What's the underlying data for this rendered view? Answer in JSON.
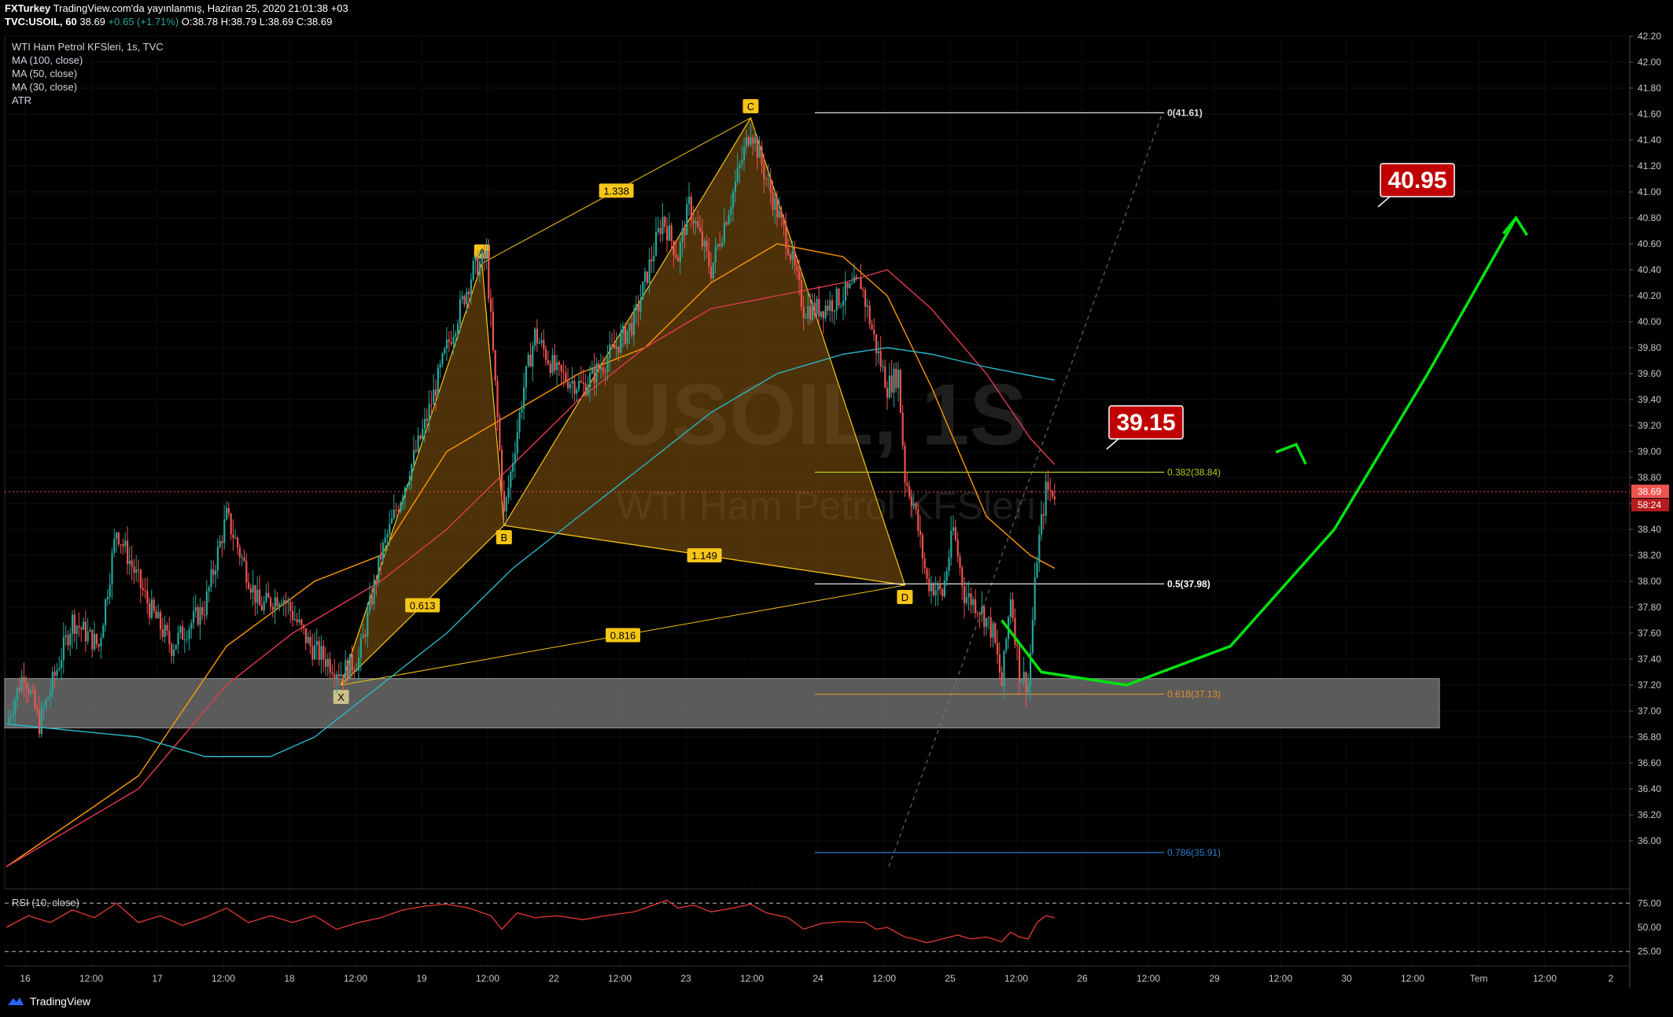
{
  "header": {
    "line1_user": "FXTurkey",
    "line1_rest": "TradingView.com'da yayınlanmış, Haziran 25, 2020 21:01:38 +03",
    "line2_symbol": "TVC:USOIL, 60",
    "line2_price": "38.69",
    "line2_change": "+0.65 (+1.71%)",
    "line2_ohlc": "O:38.78 H:38.79 L:38.69 C:38.69"
  },
  "legend": {
    "title": "WTI Ham Petrol KFSleri, 1s, TVC",
    "items": [
      "MA (100, close)",
      "MA (50, close)",
      "MA (30, close)",
      "ATR"
    ],
    "rsi": "RSI (10, close)"
  },
  "watermark": {
    "symbol": "USOIL, 1S",
    "name": "WTI Ham Petrol KFSleri"
  },
  "footer": {
    "brand": "TradingView"
  },
  "colors": {
    "up": "#26a69a",
    "down": "#ef5350",
    "pattern": "#f5c518",
    "ma30": "#ff9800",
    "ma50": "#e53950",
    "ma100": "#2bb8c8",
    "arrow": "#00e30f",
    "label_bg": "#c00000",
    "zone": "#7a7a7a"
  },
  "chart_data": {
    "type": "candlestick",
    "symbol": "TVC:USOIL",
    "interval": "60",
    "last_price": 38.69,
    "countdown": "58:24",
    "ylim": [
      35.8,
      42.2
    ],
    "y_ticks": [
      "42.20",
      "42.00",
      "41.80",
      "41.60",
      "41.40",
      "41.20",
      "41.00",
      "40.80",
      "40.60",
      "40.40",
      "40.20",
      "40.00",
      "39.80",
      "39.60",
      "39.40",
      "39.20",
      "39.00",
      "38.80",
      "38.60",
      "38.40",
      "38.20",
      "38.00",
      "37.80",
      "37.60",
      "37.40",
      "37.20",
      "37.00",
      "36.80",
      "36.60",
      "36.40",
      "36.20",
      "36.00"
    ],
    "x_ticks": [
      "16",
      "12:00",
      "17",
      "12:00",
      "18",
      "12:00",
      "19",
      "12:00",
      "22",
      "12:00",
      "23",
      "12:00",
      "24",
      "12:00",
      "25",
      "12:00",
      "26",
      "12:00",
      "29",
      "12:00",
      "30",
      "12:00",
      "Tem",
      "12:00",
      "2"
    ],
    "price_path": [
      [
        0,
        36.9
      ],
      [
        8,
        37.3
      ],
      [
        15,
        36.9
      ],
      [
        30,
        37.7
      ],
      [
        42,
        37.5
      ],
      [
        50,
        38.4
      ],
      [
        65,
        37.8
      ],
      [
        75,
        37.5
      ],
      [
        90,
        37.8
      ],
      [
        100,
        38.5
      ],
      [
        115,
        37.8
      ],
      [
        125,
        37.9
      ],
      [
        138,
        37.5
      ],
      [
        152,
        37.3
      ],
      [
        160,
        37.4
      ],
      [
        170,
        38.2
      ],
      [
        180,
        38.7
      ],
      [
        190,
        39.2
      ],
      [
        200,
        39.8
      ],
      [
        212,
        40.4
      ],
      [
        218,
        40.5
      ],
      [
        222,
        39.5
      ],
      [
        226,
        38.5
      ],
      [
        235,
        39.5
      ],
      [
        240,
        39.9
      ],
      [
        250,
        39.6
      ],
      [
        262,
        39.5
      ],
      [
        272,
        39.7
      ],
      [
        285,
        40.0
      ],
      [
        298,
        40.8
      ],
      [
        305,
        40.5
      ],
      [
        310,
        40.9
      ],
      [
        320,
        40.4
      ],
      [
        330,
        41.0
      ],
      [
        338,
        41.5
      ],
      [
        345,
        41.1
      ],
      [
        355,
        40.6
      ],
      [
        362,
        40.1
      ],
      [
        370,
        40.1
      ],
      [
        380,
        40.2
      ],
      [
        388,
        40.3
      ],
      [
        395,
        39.8
      ],
      [
        400,
        39.5
      ],
      [
        405,
        39.6
      ],
      [
        408,
        38.8
      ],
      [
        412,
        38.6
      ],
      [
        418,
        38.0
      ],
      [
        425,
        37.9
      ],
      [
        430,
        38.4
      ],
      [
        435,
        37.9
      ],
      [
        442,
        37.8
      ],
      [
        448,
        37.6
      ],
      [
        452,
        37.2
      ],
      [
        456,
        37.9
      ],
      [
        460,
        37.3
      ],
      [
        464,
        37.2
      ],
      [
        468,
        38.2
      ],
      [
        472,
        38.7
      ],
      [
        476,
        38.69
      ]
    ],
    "series": [
      {
        "name": "MA (30, close)",
        "values": [
          [
            0,
            35.8
          ],
          [
            60,
            36.5
          ],
          [
            100,
            37.5
          ],
          [
            140,
            38.0
          ],
          [
            170,
            38.2
          ],
          [
            200,
            39.0
          ],
          [
            230,
            39.3
          ],
          [
            260,
            39.6
          ],
          [
            290,
            39.8
          ],
          [
            320,
            40.3
          ],
          [
            350,
            40.6
          ],
          [
            380,
            40.5
          ],
          [
            400,
            40.2
          ],
          [
            420,
            39.5
          ],
          [
            445,
            38.5
          ],
          [
            465,
            38.2
          ],
          [
            476,
            38.1
          ]
        ]
      },
      {
        "name": "MA (50, close)",
        "values": [
          [
            0,
            35.8
          ],
          [
            60,
            36.4
          ],
          [
            100,
            37.2
          ],
          [
            130,
            37.6
          ],
          [
            170,
            38.0
          ],
          [
            200,
            38.4
          ],
          [
            230,
            38.9
          ],
          [
            260,
            39.4
          ],
          [
            290,
            39.8
          ],
          [
            320,
            40.1
          ],
          [
            350,
            40.2
          ],
          [
            380,
            40.3
          ],
          [
            400,
            40.4
          ],
          [
            420,
            40.1
          ],
          [
            445,
            39.6
          ],
          [
            465,
            39.1
          ],
          [
            476,
            38.9
          ]
        ]
      },
      {
        "name": "MA (100, close)",
        "values": [
          [
            0,
            36.9
          ],
          [
            30,
            36.85
          ],
          [
            60,
            36.8
          ],
          [
            90,
            36.65
          ],
          [
            120,
            36.65
          ],
          [
            140,
            36.8
          ],
          [
            170,
            37.2
          ],
          [
            200,
            37.6
          ],
          [
            230,
            38.1
          ],
          [
            260,
            38.5
          ],
          [
            290,
            38.9
          ],
          [
            320,
            39.3
          ],
          [
            350,
            39.6
          ],
          [
            380,
            39.75
          ],
          [
            400,
            39.8
          ],
          [
            420,
            39.75
          ],
          [
            445,
            39.65
          ],
          [
            476,
            39.55
          ]
        ]
      }
    ],
    "rsi": {
      "name": "RSI (10, close)",
      "levels": [
        75.0,
        50.0,
        25.0
      ],
      "ylim": [
        15,
        85
      ],
      "values": [
        [
          0,
          50
        ],
        [
          10,
          62
        ],
        [
          20,
          55
        ],
        [
          30,
          68
        ],
        [
          40,
          60
        ],
        [
          50,
          75
        ],
        [
          60,
          55
        ],
        [
          70,
          62
        ],
        [
          80,
          52
        ],
        [
          90,
          60
        ],
        [
          100,
          70
        ],
        [
          110,
          55
        ],
        [
          120,
          62
        ],
        [
          130,
          55
        ],
        [
          140,
          62
        ],
        [
          150,
          48
        ],
        [
          160,
          55
        ],
        [
          170,
          60
        ],
        [
          180,
          68
        ],
        [
          190,
          72
        ],
        [
          200,
          74
        ],
        [
          210,
          70
        ],
        [
          220,
          62
        ],
        [
          225,
          48
        ],
        [
          232,
          65
        ],
        [
          240,
          60
        ],
        [
          250,
          62
        ],
        [
          262,
          58
        ],
        [
          272,
          62
        ],
        [
          285,
          66
        ],
        [
          295,
          74
        ],
        [
          300,
          78
        ],
        [
          305,
          70
        ],
        [
          312,
          73
        ],
        [
          320,
          66
        ],
        [
          330,
          70
        ],
        [
          338,
          74
        ],
        [
          345,
          65
        ],
        [
          355,
          60
        ],
        [
          362,
          48
        ],
        [
          370,
          54
        ],
        [
          380,
          56
        ],
        [
          390,
          55
        ],
        [
          395,
          48
        ],
        [
          400,
          50
        ],
        [
          408,
          40
        ],
        [
          412,
          38
        ],
        [
          418,
          34
        ],
        [
          425,
          38
        ],
        [
          432,
          42
        ],
        [
          438,
          38
        ],
        [
          445,
          40
        ],
        [
          452,
          35
        ],
        [
          456,
          45
        ],
        [
          460,
          40
        ],
        [
          464,
          38
        ],
        [
          468,
          55
        ],
        [
          472,
          62
        ],
        [
          476,
          60
        ]
      ]
    },
    "harmonic_pattern": {
      "points": [
        {
          "label": "X",
          "t": 152,
          "price": 37.2
        },
        {
          "label": "A",
          "t": 216,
          "price": 40.45
        },
        {
          "label": "B",
          "t": 226,
          "price": 38.43
        },
        {
          "label": "C",
          "t": 338,
          "price": 41.57
        },
        {
          "label": "D",
          "t": 408,
          "price": 37.97
        }
      ],
      "ratios": [
        {
          "label": "0.613",
          "between": "X-B"
        },
        {
          "label": "1.338",
          "between": "A-C"
        },
        {
          "label": "1.149",
          "between": "B-D"
        },
        {
          "label": "0.816",
          "between": "X-D"
        }
      ]
    },
    "fibonacci": [
      {
        "label": "0(41.61)",
        "level": 0,
        "price": 41.61
      },
      {
        "label": "0.382(38.84)",
        "level": 0.382,
        "price": 38.84
      },
      {
        "label": "0.5(37.98)",
        "level": 0.5,
        "price": 37.98
      },
      {
        "label": "0.618(37.13)",
        "level": 0.618,
        "price": 37.13
      },
      {
        "label": "0.786(35.91)",
        "level": 0.786,
        "price": 35.91
      }
    ],
    "support_zone": [
      36.87,
      37.25
    ],
    "targets": [
      {
        "label": "39.15",
        "price": 39.15
      },
      {
        "label": "40.95",
        "price": 40.95
      }
    ],
    "projection_arrow": [
      [
        452,
        37.7
      ],
      [
        470,
        37.3
      ],
      [
        490,
        37.2
      ],
      [
        510,
        37.5
      ],
      [
        530,
        38.4
      ],
      [
        548,
        39.6
      ],
      [
        565,
        40.8
      ]
    ]
  }
}
